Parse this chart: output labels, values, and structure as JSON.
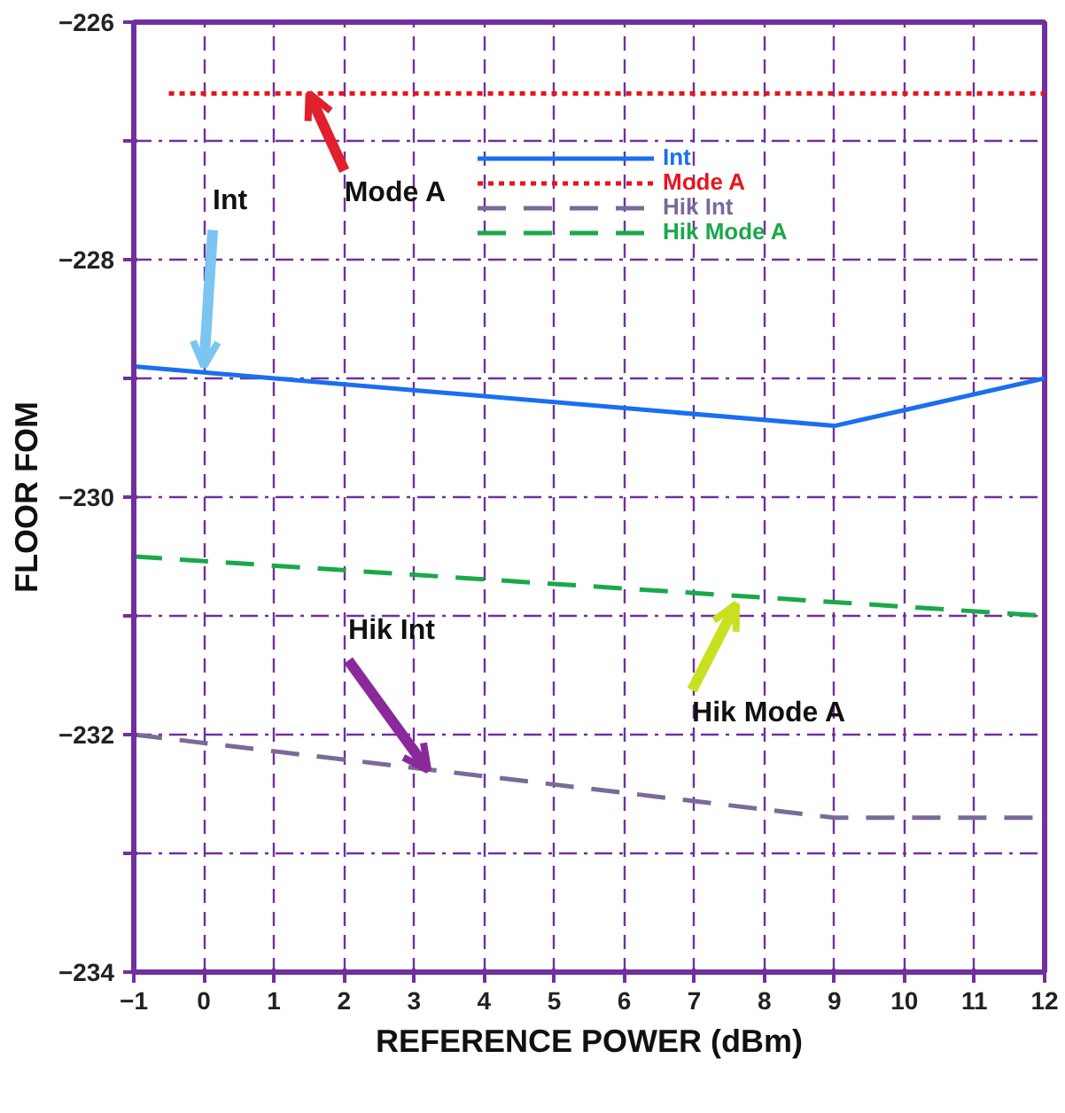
{
  "chart_data": {
    "type": "line",
    "xlabel": "REFERENCE POWER (dBm)",
    "ylabel": "FLOOR FOM",
    "xlim": [
      -1,
      12
    ],
    "xticks": [
      -1,
      0,
      1,
      2,
      3,
      4,
      5,
      6,
      7,
      8,
      9,
      10,
      11,
      12
    ],
    "ylim": [
      -234,
      -226
    ],
    "yticks": [
      -234,
      {
        "value": -233,
        "label": null
      },
      -232,
      {
        "value": -231,
        "label": null
      },
      -230,
      {
        "value": -229,
        "label": null
      },
      -228,
      {
        "value": -227,
        "label": null
      },
      -226
    ],
    "grid": true,
    "legend": "top right",
    "series": [
      {
        "name": "Int",
        "color": "#1a6ff0",
        "line_style": "solid",
        "x": [
          -1,
          9,
          12
        ],
        "values": [
          -228.9,
          -229.4,
          -229.0
        ]
      },
      {
        "name": "Mode A",
        "color": "#e8141c",
        "line_style": "dotted",
        "x": [
          -0.5,
          12
        ],
        "values": [
          -226.6,
          -226.6
        ]
      },
      {
        "name": "Hik Int",
        "color": "#7a6a9a",
        "line_style": "dashed",
        "x": [
          -1,
          9,
          12
        ],
        "values": [
          -232.0,
          -232.7,
          -232.7
        ]
      },
      {
        "name": "Hik Mode A",
        "color": "#1aa84a",
        "line_style": "dashed",
        "x": [
          -1,
          12
        ],
        "values": [
          -230.5,
          -231.0
        ]
      }
    ],
    "annotations": [
      {
        "text": "Mode A",
        "x": 1.5,
        "y": -226.6
      },
      {
        "text": "Int",
        "x": 0,
        "y": -228.9
      },
      {
        "text": "Hik Int",
        "x": 3.2,
        "y": -232.3
      },
      {
        "text": "Hik  Mode A",
        "x": 7.6,
        "y": -230.9
      }
    ]
  }
}
